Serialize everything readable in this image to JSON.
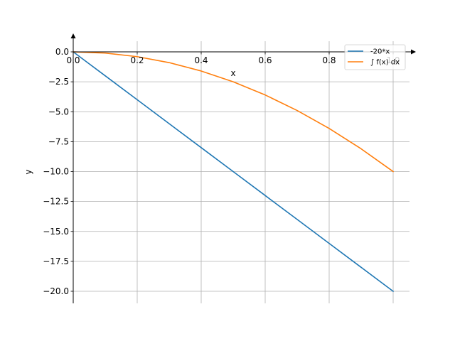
{
  "chart_data": {
    "type": "line",
    "xlabel": "x",
    "ylabel": "y",
    "xlim": [
      0.0,
      1.05
    ],
    "ylim": [
      -21.0,
      1.5
    ],
    "grid": true,
    "legend_position": "top-right",
    "x_ticks": [
      0.0,
      0.2,
      0.4,
      0.6,
      0.8,
      1.0
    ],
    "x_tick_labels": [
      "0.0",
      "0.2",
      "0.4",
      "0.6",
      "0.8",
      "1.0"
    ],
    "y_ticks": [
      0.0,
      -2.5,
      -5.0,
      -7.5,
      -10.0,
      -12.5,
      -15.0,
      -17.5,
      -20.0
    ],
    "y_tick_labels": [
      "0.0",
      "−2.5",
      "−5.0",
      "−7.5",
      "−10.0",
      "−12.5",
      "−15.0",
      "−17.5",
      "−20.0"
    ],
    "series": [
      {
        "name": "-20*x",
        "color": "#1f77b4",
        "x": [
          0.0,
          0.1,
          0.2,
          0.3,
          0.4,
          0.5,
          0.6,
          0.7,
          0.8,
          0.9,
          1.0
        ],
        "y": [
          0.0,
          -2.0,
          -4.0,
          -6.0,
          -8.0,
          -10.0,
          -12.0,
          -14.0,
          -16.0,
          -18.0,
          -20.0
        ]
      },
      {
        "name": "∫ f(x) dx",
        "color": "#ff7f0e",
        "x": [
          0.0,
          0.1,
          0.2,
          0.3,
          0.4,
          0.5,
          0.6,
          0.7,
          0.8,
          0.9,
          1.0
        ],
        "y": [
          0.0,
          -0.1,
          -0.4,
          -0.9,
          -1.6,
          -2.5,
          -3.6,
          -4.9,
          -6.4,
          -8.1,
          -10.0
        ]
      }
    ]
  }
}
